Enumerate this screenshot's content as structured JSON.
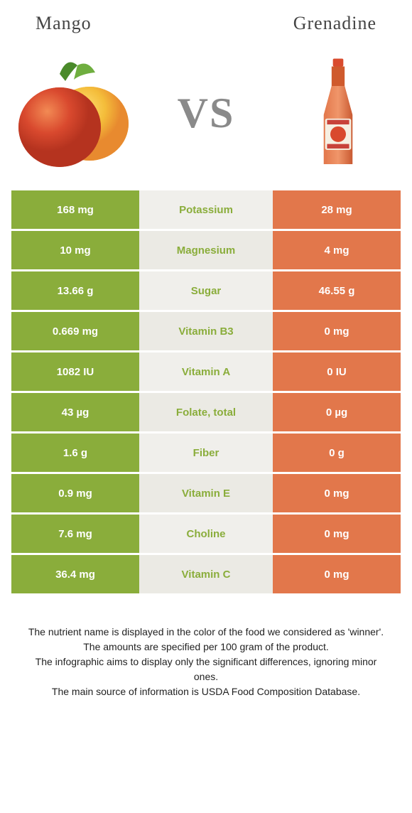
{
  "left_title": "Mango",
  "right_title": "Grenadine",
  "vs_label": "VS",
  "colors": {
    "left": "#8aad3b",
    "right": "#e2774b",
    "mid_bg": "#f0efeb",
    "mid_alt_bg": "#ebeae4"
  },
  "rows": [
    {
      "left": "168 mg",
      "name": "Potassium",
      "right": "28 mg",
      "winner": "left"
    },
    {
      "left": "10 mg",
      "name": "Magnesium",
      "right": "4 mg",
      "winner": "left"
    },
    {
      "left": "13.66 g",
      "name": "Sugar",
      "right": "46.55 g",
      "winner": "left"
    },
    {
      "left": "0.669 mg",
      "name": "Vitamin B3",
      "right": "0 mg",
      "winner": "left"
    },
    {
      "left": "1082 IU",
      "name": "Vitamin A",
      "right": "0 IU",
      "winner": "left"
    },
    {
      "left": "43 µg",
      "name": "Folate, total",
      "right": "0 µg",
      "winner": "left"
    },
    {
      "left": "1.6 g",
      "name": "Fiber",
      "right": "0 g",
      "winner": "left"
    },
    {
      "left": "0.9 mg",
      "name": "Vitamin E",
      "right": "0 mg",
      "winner": "left"
    },
    {
      "left": "7.6 mg",
      "name": "Choline",
      "right": "0 mg",
      "winner": "left"
    },
    {
      "left": "36.4 mg",
      "name": "Vitamin C",
      "right": "0 mg",
      "winner": "left"
    }
  ],
  "footer_lines": [
    "The nutrient name is displayed in the color of the food we considered as 'winner'.",
    "The amounts are specified per 100 gram of the product.",
    "The infographic aims to display only the significant differences, ignoring minor ones.",
    "The main source of information is USDA Food Composition Database."
  ]
}
